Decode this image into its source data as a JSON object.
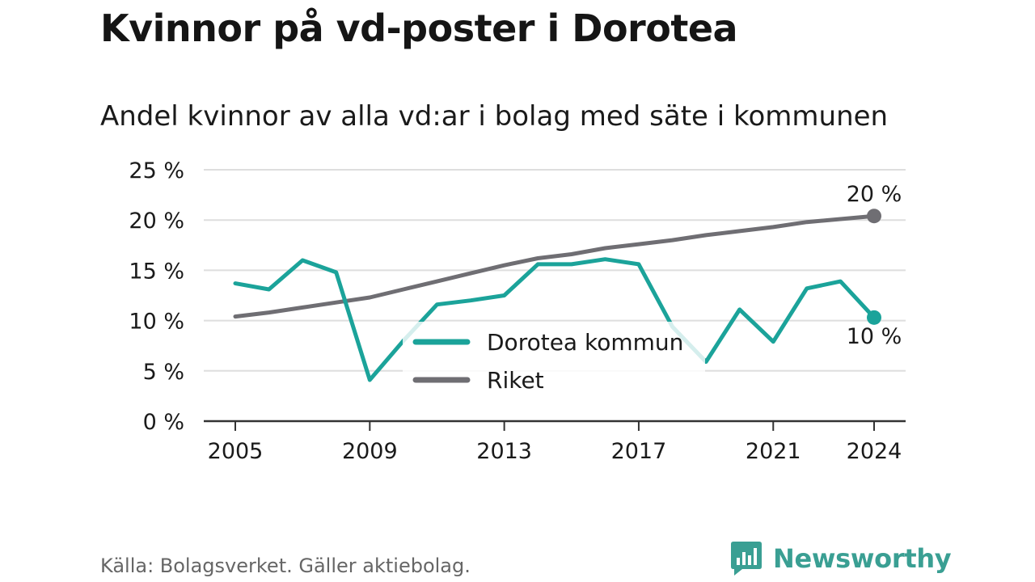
{
  "title": "Kvinnor på vd-poster i Dorotea",
  "subtitle": "Andel kvinnor av alla vd:ar i bolag med säte i kommunen",
  "source": "Källa: Bolagsverket. Gäller aktiebolag.",
  "brand": "Newsworthy",
  "colors": {
    "dorotea": "#1ba39a",
    "riket": "#6f6e73",
    "grid": "#dedede",
    "axis": "#333333"
  },
  "chart_data": {
    "type": "line",
    "x": [
      2005,
      2006,
      2007,
      2008,
      2009,
      2010,
      2011,
      2012,
      2013,
      2014,
      2015,
      2016,
      2017,
      2018,
      2019,
      2020,
      2021,
      2022,
      2023,
      2024
    ],
    "x_ticks": [
      "2005",
      "2009",
      "2013",
      "2017",
      "2021",
      "2024"
    ],
    "y_ticks": [
      "0 %",
      "5 %",
      "10 %",
      "15 %",
      "20 %",
      "25 %"
    ],
    "ylim": [
      0,
      25
    ],
    "grid": true,
    "legend_position": "center",
    "series": [
      {
        "name": "Dorotea kommun",
        "color": "#1ba39a",
        "values": [
          13.7,
          13.1,
          16.0,
          14.8,
          4.1,
          8.0,
          11.6,
          12.0,
          12.5,
          15.6,
          15.6,
          16.1,
          15.6,
          9.4,
          5.9,
          11.1,
          7.9,
          13.2,
          13.9,
          10.3
        ],
        "end_label": "10 %"
      },
      {
        "name": "Riket",
        "color": "#6f6e73",
        "values": [
          10.4,
          10.8,
          11.3,
          11.8,
          12.3,
          13.1,
          13.9,
          14.7,
          15.5,
          16.2,
          16.6,
          17.2,
          17.6,
          18.0,
          18.5,
          18.9,
          19.3,
          19.8,
          20.1,
          20.4
        ],
        "end_label": "20 %"
      }
    ]
  }
}
